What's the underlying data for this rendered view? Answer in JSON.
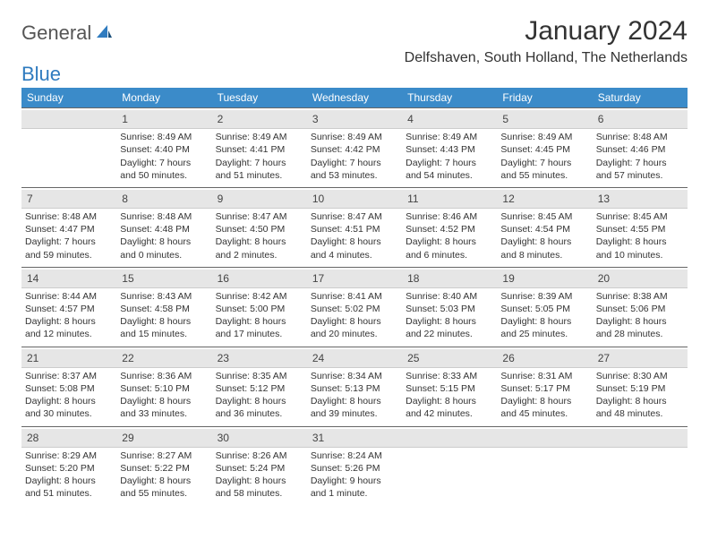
{
  "logo": {
    "text1": "General",
    "text2": "Blue"
  },
  "title": "January 2024",
  "location": "Delfshaven, South Holland, The Netherlands",
  "colors": {
    "header_bg": "#3b8bc9",
    "header_text": "#ffffff",
    "daynum_bg": "#e6e6e6",
    "border": "#666666",
    "text": "#333333",
    "logo_gray": "#555555",
    "logo_blue": "#2f7bbf"
  },
  "day_headers": [
    "Sunday",
    "Monday",
    "Tuesday",
    "Wednesday",
    "Thursday",
    "Friday",
    "Saturday"
  ],
  "weeks": [
    [
      {
        "n": "",
        "sunrise": "",
        "sunset": "",
        "daylight": ""
      },
      {
        "n": "1",
        "sunrise": "Sunrise: 8:49 AM",
        "sunset": "Sunset: 4:40 PM",
        "daylight": "Daylight: 7 hours and 50 minutes."
      },
      {
        "n": "2",
        "sunrise": "Sunrise: 8:49 AM",
        "sunset": "Sunset: 4:41 PM",
        "daylight": "Daylight: 7 hours and 51 minutes."
      },
      {
        "n": "3",
        "sunrise": "Sunrise: 8:49 AM",
        "sunset": "Sunset: 4:42 PM",
        "daylight": "Daylight: 7 hours and 53 minutes."
      },
      {
        "n": "4",
        "sunrise": "Sunrise: 8:49 AM",
        "sunset": "Sunset: 4:43 PM",
        "daylight": "Daylight: 7 hours and 54 minutes."
      },
      {
        "n": "5",
        "sunrise": "Sunrise: 8:49 AM",
        "sunset": "Sunset: 4:45 PM",
        "daylight": "Daylight: 7 hours and 55 minutes."
      },
      {
        "n": "6",
        "sunrise": "Sunrise: 8:48 AM",
        "sunset": "Sunset: 4:46 PM",
        "daylight": "Daylight: 7 hours and 57 minutes."
      }
    ],
    [
      {
        "n": "7",
        "sunrise": "Sunrise: 8:48 AM",
        "sunset": "Sunset: 4:47 PM",
        "daylight": "Daylight: 7 hours and 59 minutes."
      },
      {
        "n": "8",
        "sunrise": "Sunrise: 8:48 AM",
        "sunset": "Sunset: 4:48 PM",
        "daylight": "Daylight: 8 hours and 0 minutes."
      },
      {
        "n": "9",
        "sunrise": "Sunrise: 8:47 AM",
        "sunset": "Sunset: 4:50 PM",
        "daylight": "Daylight: 8 hours and 2 minutes."
      },
      {
        "n": "10",
        "sunrise": "Sunrise: 8:47 AM",
        "sunset": "Sunset: 4:51 PM",
        "daylight": "Daylight: 8 hours and 4 minutes."
      },
      {
        "n": "11",
        "sunrise": "Sunrise: 8:46 AM",
        "sunset": "Sunset: 4:52 PM",
        "daylight": "Daylight: 8 hours and 6 minutes."
      },
      {
        "n": "12",
        "sunrise": "Sunrise: 8:45 AM",
        "sunset": "Sunset: 4:54 PM",
        "daylight": "Daylight: 8 hours and 8 minutes."
      },
      {
        "n": "13",
        "sunrise": "Sunrise: 8:45 AM",
        "sunset": "Sunset: 4:55 PM",
        "daylight": "Daylight: 8 hours and 10 minutes."
      }
    ],
    [
      {
        "n": "14",
        "sunrise": "Sunrise: 8:44 AM",
        "sunset": "Sunset: 4:57 PM",
        "daylight": "Daylight: 8 hours and 12 minutes."
      },
      {
        "n": "15",
        "sunrise": "Sunrise: 8:43 AM",
        "sunset": "Sunset: 4:58 PM",
        "daylight": "Daylight: 8 hours and 15 minutes."
      },
      {
        "n": "16",
        "sunrise": "Sunrise: 8:42 AM",
        "sunset": "Sunset: 5:00 PM",
        "daylight": "Daylight: 8 hours and 17 minutes."
      },
      {
        "n": "17",
        "sunrise": "Sunrise: 8:41 AM",
        "sunset": "Sunset: 5:02 PM",
        "daylight": "Daylight: 8 hours and 20 minutes."
      },
      {
        "n": "18",
        "sunrise": "Sunrise: 8:40 AM",
        "sunset": "Sunset: 5:03 PM",
        "daylight": "Daylight: 8 hours and 22 minutes."
      },
      {
        "n": "19",
        "sunrise": "Sunrise: 8:39 AM",
        "sunset": "Sunset: 5:05 PM",
        "daylight": "Daylight: 8 hours and 25 minutes."
      },
      {
        "n": "20",
        "sunrise": "Sunrise: 8:38 AM",
        "sunset": "Sunset: 5:06 PM",
        "daylight": "Daylight: 8 hours and 28 minutes."
      }
    ],
    [
      {
        "n": "21",
        "sunrise": "Sunrise: 8:37 AM",
        "sunset": "Sunset: 5:08 PM",
        "daylight": "Daylight: 8 hours and 30 minutes."
      },
      {
        "n": "22",
        "sunrise": "Sunrise: 8:36 AM",
        "sunset": "Sunset: 5:10 PM",
        "daylight": "Daylight: 8 hours and 33 minutes."
      },
      {
        "n": "23",
        "sunrise": "Sunrise: 8:35 AM",
        "sunset": "Sunset: 5:12 PM",
        "daylight": "Daylight: 8 hours and 36 minutes."
      },
      {
        "n": "24",
        "sunrise": "Sunrise: 8:34 AM",
        "sunset": "Sunset: 5:13 PM",
        "daylight": "Daylight: 8 hours and 39 minutes."
      },
      {
        "n": "25",
        "sunrise": "Sunrise: 8:33 AM",
        "sunset": "Sunset: 5:15 PM",
        "daylight": "Daylight: 8 hours and 42 minutes."
      },
      {
        "n": "26",
        "sunrise": "Sunrise: 8:31 AM",
        "sunset": "Sunset: 5:17 PM",
        "daylight": "Daylight: 8 hours and 45 minutes."
      },
      {
        "n": "27",
        "sunrise": "Sunrise: 8:30 AM",
        "sunset": "Sunset: 5:19 PM",
        "daylight": "Daylight: 8 hours and 48 minutes."
      }
    ],
    [
      {
        "n": "28",
        "sunrise": "Sunrise: 8:29 AM",
        "sunset": "Sunset: 5:20 PM",
        "daylight": "Daylight: 8 hours and 51 minutes."
      },
      {
        "n": "29",
        "sunrise": "Sunrise: 8:27 AM",
        "sunset": "Sunset: 5:22 PM",
        "daylight": "Daylight: 8 hours and 55 minutes."
      },
      {
        "n": "30",
        "sunrise": "Sunrise: 8:26 AM",
        "sunset": "Sunset: 5:24 PM",
        "daylight": "Daylight: 8 hours and 58 minutes."
      },
      {
        "n": "31",
        "sunrise": "Sunrise: 8:24 AM",
        "sunset": "Sunset: 5:26 PM",
        "daylight": "Daylight: 9 hours and 1 minute."
      },
      {
        "n": "",
        "sunrise": "",
        "sunset": "",
        "daylight": ""
      },
      {
        "n": "",
        "sunrise": "",
        "sunset": "",
        "daylight": ""
      },
      {
        "n": "",
        "sunrise": "",
        "sunset": "",
        "daylight": ""
      }
    ]
  ]
}
